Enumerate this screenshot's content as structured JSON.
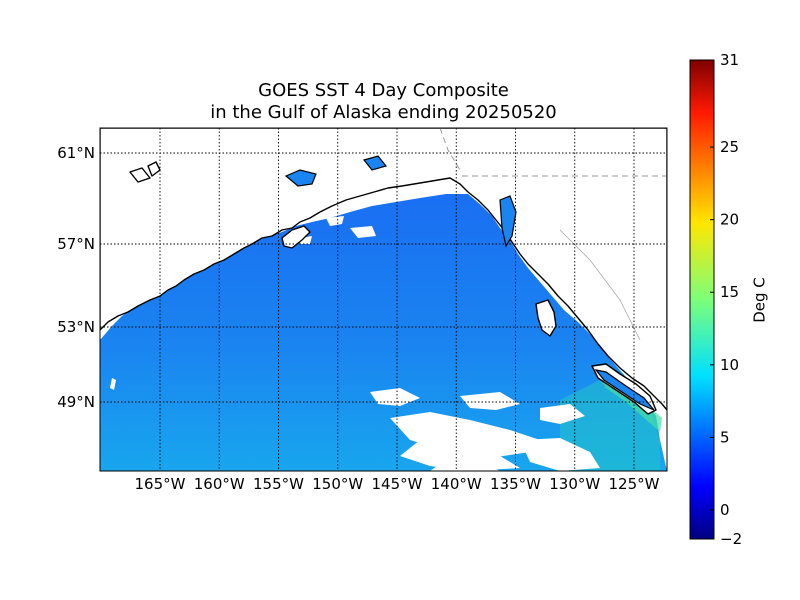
{
  "title": {
    "line1": "GOES SST 4 Day Composite",
    "line2": "in the Gulf of Alaska ending 20250520"
  },
  "map": {
    "region": "Gulf of Alaska",
    "lon_range": [
      -170,
      -123
    ],
    "lat_range": [
      46,
      62
    ],
    "grid": true,
    "lat_labels": [
      {
        "value": 61,
        "label": "61°N"
      },
      {
        "value": 57,
        "label": "57°N"
      },
      {
        "value": 53,
        "label": "53°N"
      },
      {
        "value": 49,
        "label": "49°N"
      }
    ],
    "lon_labels": [
      {
        "value": -165,
        "label": "165°W"
      },
      {
        "value": -160,
        "label": "160°W"
      },
      {
        "value": -155,
        "label": "155°W"
      },
      {
        "value": -150,
        "label": "150°W"
      },
      {
        "value": -145,
        "label": "145°W"
      },
      {
        "value": -140,
        "label": "140°W"
      },
      {
        "value": -135,
        "label": "135°W"
      },
      {
        "value": -130,
        "label": "130°W"
      },
      {
        "value": -125,
        "label": "125°W"
      }
    ]
  },
  "colorbar": {
    "label": "Deg C",
    "range": [
      -2,
      31
    ],
    "ticks": [
      {
        "value": 31,
        "label": "31"
      },
      {
        "value": 25,
        "label": "25"
      },
      {
        "value": 20,
        "label": "20"
      },
      {
        "value": 15,
        "label": "15"
      },
      {
        "value": 10,
        "label": "10"
      },
      {
        "value": 5,
        "label": "5"
      },
      {
        "value": 0,
        "label": "0"
      },
      {
        "value": -2,
        "label": "−2"
      }
    ],
    "colormap": "jet"
  },
  "colors": {
    "sea_main": "#1a7cf2",
    "sea_south": "#16a8ee",
    "sea_warm": "#1ec8d8",
    "land": "#ffffff",
    "coast": "#000000"
  }
}
